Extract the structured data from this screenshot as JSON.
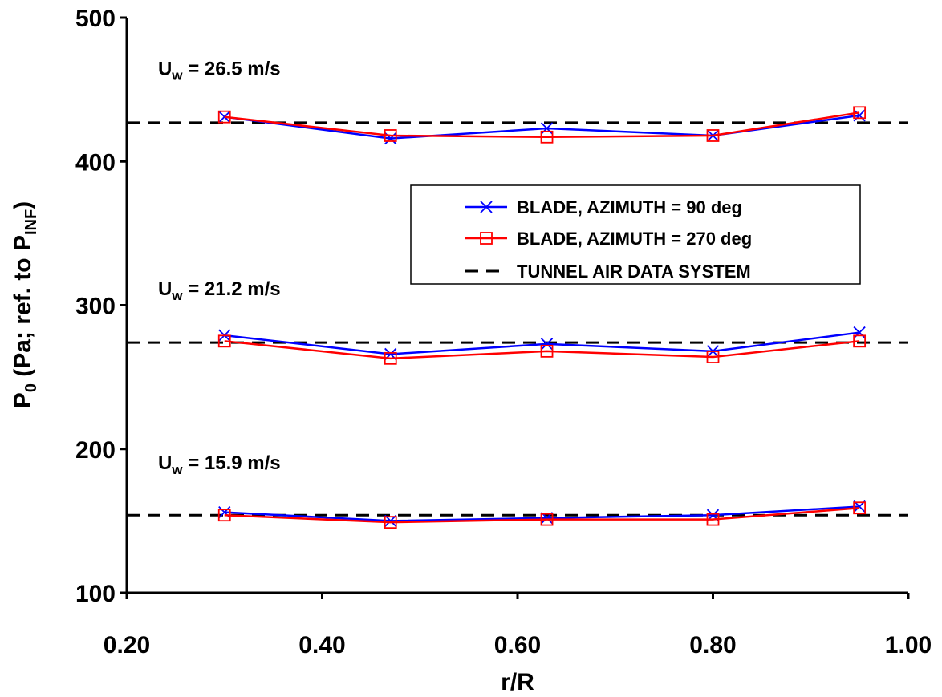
{
  "chart_data": {
    "type": "line",
    "xlabel": "r/R",
    "ylabel": {
      "pre": "P",
      "pre_sub": "0",
      "mid": " (Pa; ref. to P",
      "mid_sub": "INF",
      "post": ")"
    },
    "xlim": [
      0.2,
      1.0
    ],
    "ylim": [
      100,
      500
    ],
    "xticks": [
      0.2,
      0.4,
      0.6,
      0.8,
      1.0
    ],
    "xtick_labels": [
      "0.20",
      "0.40",
      "0.60",
      "0.80",
      "1.00"
    ],
    "yticks": [
      100,
      200,
      300,
      400,
      500
    ],
    "ytick_labels": [
      "100",
      "200",
      "300",
      "400",
      "500"
    ],
    "grid": false,
    "legend_position": "right",
    "series": [
      {
        "name": "BLADE, AZIMUTH = 90 deg",
        "color": "#0000ff",
        "marker": "x",
        "groups": [
          {
            "x": [
              0.3,
              0.47,
              0.63,
              0.8,
              0.95
            ],
            "y": [
              431,
              416,
              423,
              418,
              432
            ]
          },
          {
            "x": [
              0.3,
              0.47,
              0.63,
              0.8,
              0.95
            ],
            "y": [
              279,
              266,
              273,
              268,
              281
            ]
          },
          {
            "x": [
              0.3,
              0.47,
              0.63,
              0.8,
              0.95
            ],
            "y": [
              156,
              150,
              152,
              154,
              160
            ]
          }
        ]
      },
      {
        "name": "BLADE, AZIMUTH = 270 deg",
        "color": "#ff0000",
        "marker": "square",
        "groups": [
          {
            "x": [
              0.3,
              0.47,
              0.63,
              0.8,
              0.95
            ],
            "y": [
              431,
              418,
              417,
              418,
              434
            ]
          },
          {
            "x": [
              0.3,
              0.47,
              0.63,
              0.8,
              0.95
            ],
            "y": [
              275,
              263,
              268,
              264,
              275
            ]
          },
          {
            "x": [
              0.3,
              0.47,
              0.63,
              0.8,
              0.95
            ],
            "y": [
              154,
              149,
              151,
              151,
              159
            ]
          }
        ]
      },
      {
        "name": "TUNNEL AIR DATA SYSTEM",
        "color": "#000000",
        "marker": "none",
        "dashed": true,
        "levels": [
          427,
          274,
          154
        ]
      }
    ],
    "annotations": [
      {
        "pre": "U",
        "sub": "w",
        "post": " = 26.5 m/s",
        "x": 0.232,
        "y": 460
      },
      {
        "pre": "U",
        "sub": "w",
        "post": " = 21.2 m/s",
        "x": 0.232,
        "y": 307
      },
      {
        "pre": "U",
        "sub": "w",
        "post": " = 15.9 m/s",
        "x": 0.232,
        "y": 186
      }
    ]
  }
}
